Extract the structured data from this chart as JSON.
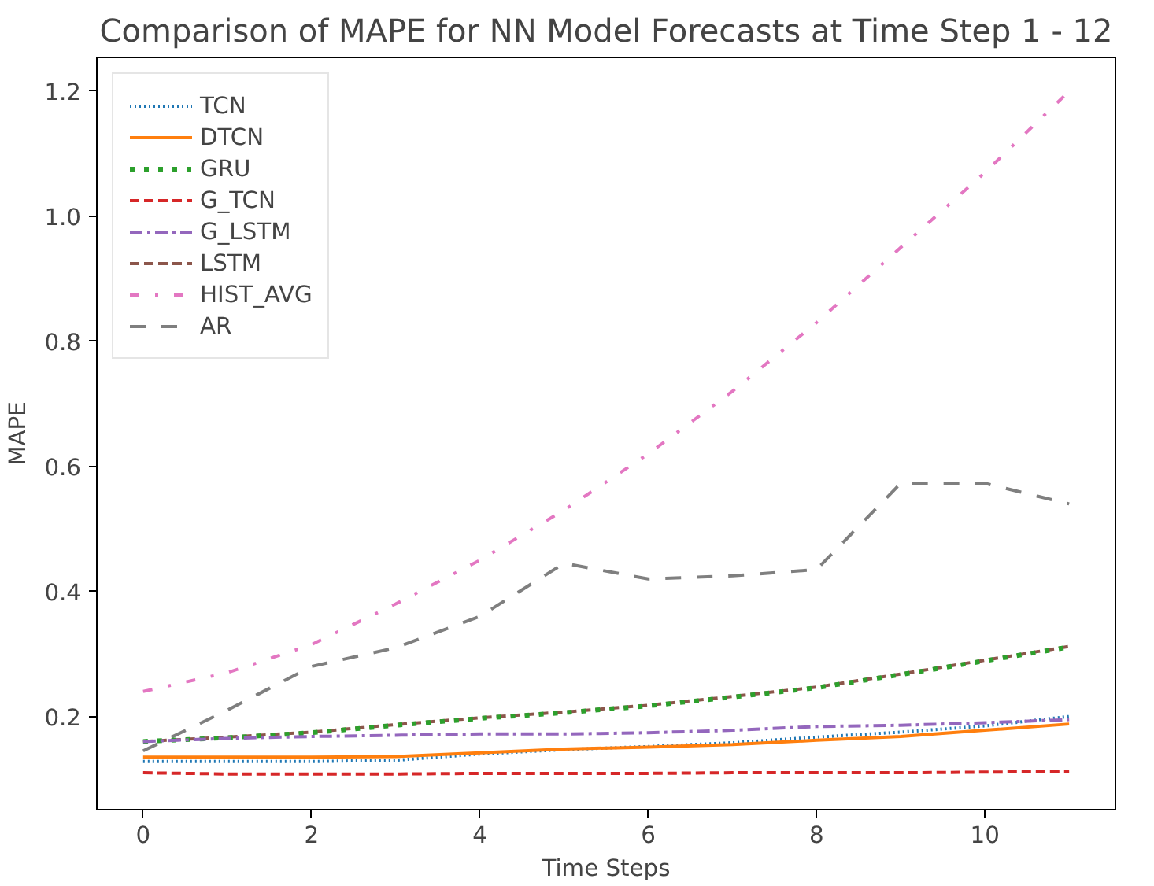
{
  "chart_data": {
    "type": "line",
    "title": "Comparison of MAPE for NN Model Forecasts at Time Step 1 - 12",
    "xlabel": "Time Steps",
    "ylabel": "MAPE",
    "x": [
      0,
      1,
      2,
      3,
      4,
      5,
      6,
      7,
      8,
      9,
      10,
      11
    ],
    "xlim": [
      -0.55,
      11.55
    ],
    "xticks": [
      0,
      2,
      4,
      6,
      8,
      10
    ],
    "ylim": [
      0.051,
      1.254
    ],
    "yticks": [
      0.2,
      0.4,
      0.6,
      0.8,
      {
        "value": 1.0,
        "label": "1.0"
      },
      1.2
    ],
    "grid": false,
    "legend": "top left",
    "series": [
      {
        "name": "TCN",
        "color": "#1f77b4",
        "line_style": "dotted",
        "values": [
          0.128,
          0.128,
          0.128,
          0.13,
          0.14,
          0.147,
          0.152,
          0.158,
          0.167,
          0.175,
          0.185,
          0.2
        ]
      },
      {
        "name": "DTCN",
        "color": "#ff7f0e",
        "line_style": "solid",
        "values": [
          0.135,
          0.135,
          0.135,
          0.136,
          0.142,
          0.148,
          0.151,
          0.155,
          0.162,
          0.168,
          0.178,
          0.188
        ]
      },
      {
        "name": "GRU",
        "color": "#2ca02c",
        "line_style": "sparse_dotted",
        "values": [
          0.16,
          0.166,
          0.174,
          0.186,
          0.197,
          0.206,
          0.217,
          0.231,
          0.246,
          0.267,
          0.289,
          0.311
        ]
      },
      {
        "name": "G_TCN",
        "color": "#d62728",
        "line_style": "dashed",
        "values": [
          0.11,
          0.108,
          0.108,
          0.108,
          0.109,
          0.109,
          0.109,
          0.11,
          0.11,
          0.11,
          0.111,
          0.112
        ]
      },
      {
        "name": "G_LSTM",
        "color": "#9467bd",
        "line_style": "dashdot",
        "values": [
          0.16,
          0.165,
          0.168,
          0.17,
          0.172,
          0.172,
          0.174,
          0.178,
          0.184,
          0.186,
          0.19,
          0.195
        ]
      },
      {
        "name": "LSTM",
        "color": "#8c564b",
        "line_style": "dashed",
        "values": [
          0.16,
          0.167,
          0.175,
          0.187,
          0.198,
          0.207,
          0.218,
          0.232,
          0.247,
          0.268,
          0.29,
          0.312
        ]
      },
      {
        "name": "HIST_AVG",
        "color": "#e377c2",
        "line_style": "loose_dashdot",
        "values": [
          0.24,
          0.27,
          0.315,
          0.38,
          0.45,
          0.53,
          0.62,
          0.72,
          0.83,
          0.95,
          1.07,
          1.2
        ]
      },
      {
        "name": "AR",
        "color": "#7f7f7f",
        "line_style": "loose_dashed",
        "values": [
          0.145,
          0.21,
          0.28,
          0.31,
          0.36,
          0.445,
          0.42,
          0.425,
          0.435,
          0.573,
          0.573,
          0.54
        ]
      }
    ]
  }
}
